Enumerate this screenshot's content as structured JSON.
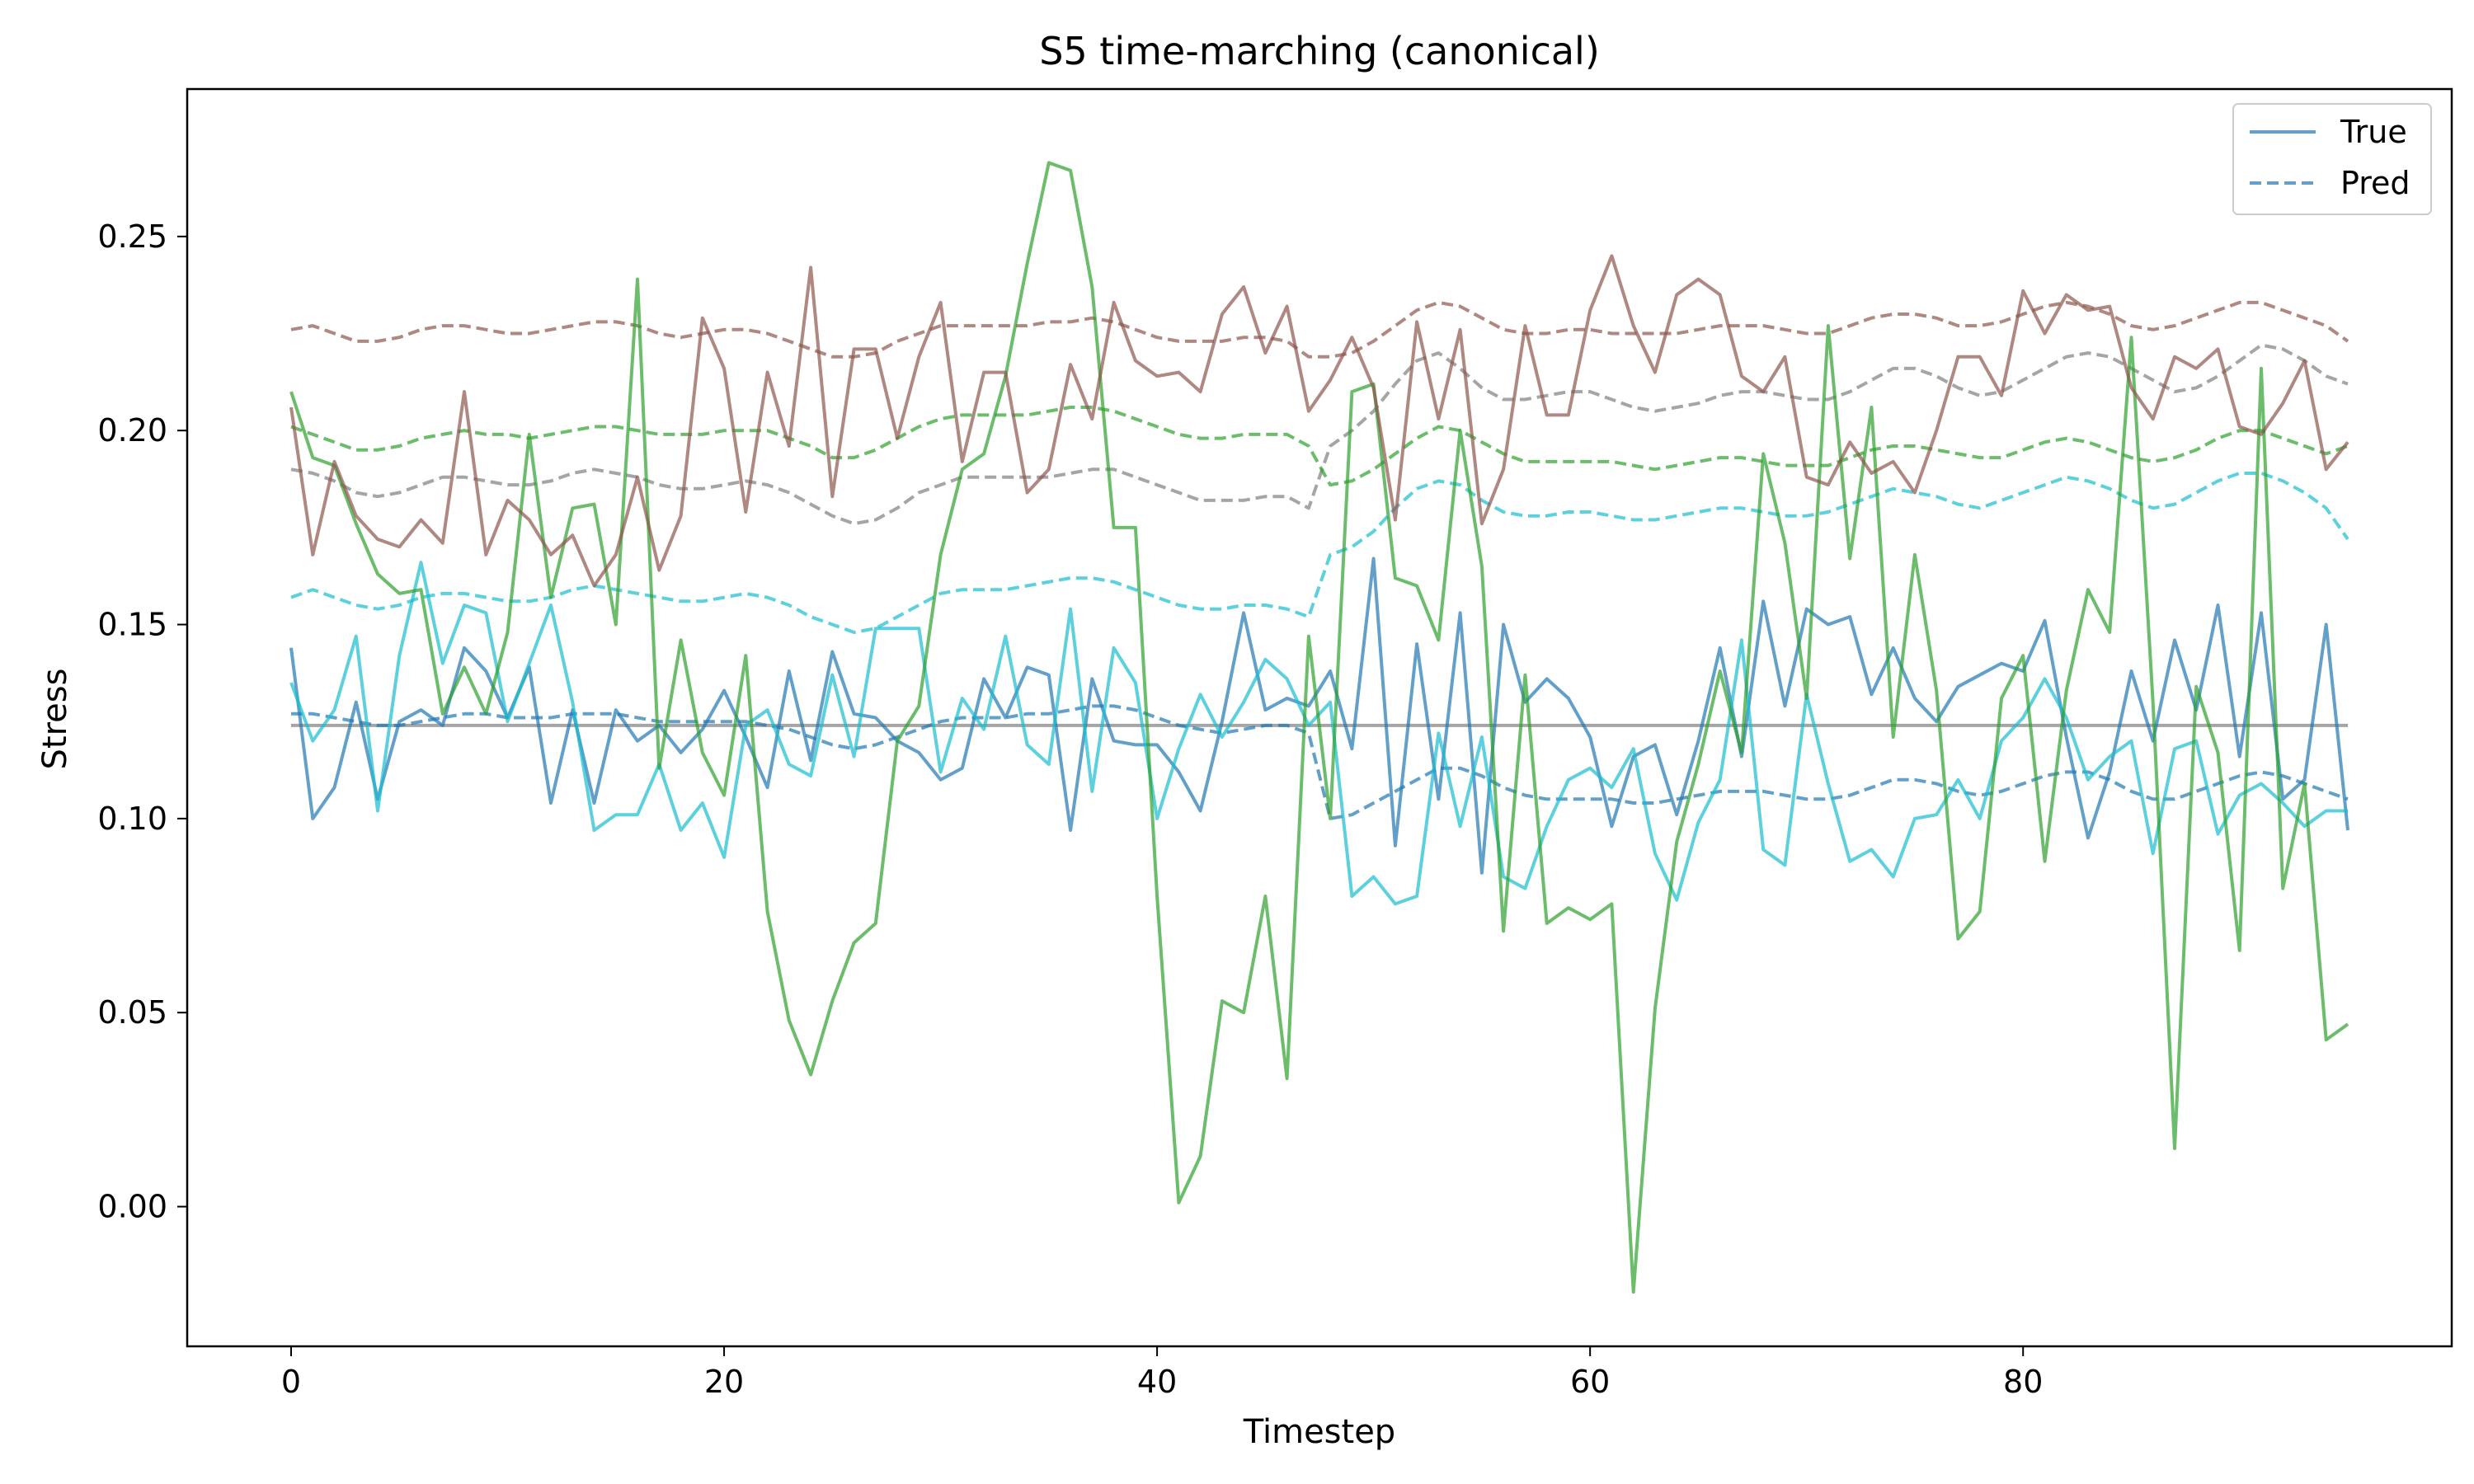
{
  "chart_data": {
    "type": "line",
    "title": "S5 time-marching (canonical)",
    "xlabel": "Timestep",
    "ylabel": "Stress",
    "xlim": [
      -4.8,
      99.8
    ],
    "ylim": [
      -0.036,
      0.288
    ],
    "xticks": [
      0,
      20,
      40,
      60,
      80
    ],
    "yticks": [
      0.0,
      0.05,
      0.1,
      0.15,
      0.2,
      0.25
    ],
    "ytick_labels": [
      "0.00",
      "0.05",
      "0.10",
      "0.15",
      "0.20",
      "0.25"
    ],
    "grid": false,
    "legend": {
      "position": "top-right",
      "entries": [
        {
          "label": "True",
          "style": "solid",
          "color": "#1f77b4"
        },
        {
          "label": "Pred",
          "style": "dashed",
          "color": "#1f77b4"
        }
      ]
    },
    "colors": {
      "blue": "#1f77b4",
      "green": "#2ca02c",
      "brown": "#8c564b",
      "gray": "#7f7f7f",
      "cyan": "#17becf"
    },
    "series": [
      {
        "color": "gray",
        "style": "solid",
        "values": [
          0.124,
          0.124,
          0.124,
          0.124,
          0.124,
          0.124,
          0.124,
          0.124,
          0.124,
          0.124,
          0.124,
          0.124,
          0.124,
          0.124,
          0.124,
          0.124,
          0.124,
          0.124,
          0.124,
          0.124,
          0.124,
          0.124,
          0.124,
          0.124,
          0.124,
          0.124,
          0.124,
          0.124,
          0.124,
          0.124,
          0.124,
          0.124,
          0.124,
          0.124,
          0.124,
          0.124,
          0.124,
          0.124,
          0.124,
          0.124,
          0.124,
          0.124,
          0.124,
          0.124,
          0.124,
          0.124,
          0.124,
          0.124,
          0.124,
          0.124,
          0.124,
          0.124,
          0.124,
          0.124,
          0.124,
          0.124,
          0.124,
          0.124,
          0.124,
          0.124,
          0.124,
          0.124,
          0.124,
          0.124,
          0.124,
          0.124,
          0.124,
          0.124,
          0.124,
          0.124,
          0.124,
          0.124,
          0.124,
          0.124,
          0.124,
          0.124,
          0.124,
          0.124,
          0.124,
          0.124,
          0.124,
          0.124,
          0.124,
          0.124,
          0.124,
          0.124,
          0.124,
          0.124,
          0.124,
          0.124,
          0.124,
          0.124,
          0.124,
          0.124,
          0.124,
          0.124
        ]
      },
      {
        "color": "gray",
        "style": "dashed",
        "values": [
          0.19,
          0.189,
          0.187,
          0.184,
          0.183,
          0.184,
          0.186,
          0.188,
          0.188,
          0.187,
          0.186,
          0.186,
          0.187,
          0.189,
          0.19,
          0.189,
          0.188,
          0.186,
          0.185,
          0.185,
          0.186,
          0.187,
          0.186,
          0.184,
          0.181,
          0.178,
          0.176,
          0.177,
          0.18,
          0.184,
          0.186,
          0.188,
          0.188,
          0.188,
          0.188,
          0.188,
          0.189,
          0.19,
          0.19,
          0.188,
          0.186,
          0.184,
          0.182,
          0.182,
          0.182,
          0.183,
          0.183,
          0.18,
          0.196,
          0.2,
          0.205,
          0.212,
          0.218,
          0.22,
          0.216,
          0.211,
          0.208,
          0.208,
          0.209,
          0.21,
          0.21,
          0.208,
          0.206,
          0.205,
          0.206,
          0.207,
          0.209,
          0.21,
          0.21,
          0.209,
          0.208,
          0.208,
          0.21,
          0.213,
          0.216,
          0.216,
          0.214,
          0.211,
          0.209,
          0.21,
          0.213,
          0.216,
          0.219,
          0.22,
          0.219,
          0.216,
          0.213,
          0.21,
          0.211,
          0.214,
          0.218,
          0.222,
          0.221,
          0.218,
          0.214,
          0.212
        ]
      },
      {
        "color": "blue",
        "style": "dashed",
        "values": [
          0.127,
          0.127,
          0.126,
          0.125,
          0.124,
          0.124,
          0.125,
          0.126,
          0.127,
          0.127,
          0.126,
          0.126,
          0.126,
          0.127,
          0.127,
          0.127,
          0.126,
          0.125,
          0.125,
          0.125,
          0.125,
          0.125,
          0.124,
          0.123,
          0.121,
          0.119,
          0.118,
          0.119,
          0.121,
          0.123,
          0.125,
          0.126,
          0.126,
          0.126,
          0.127,
          0.127,
          0.128,
          0.129,
          0.129,
          0.128,
          0.126,
          0.124,
          0.123,
          0.122,
          0.123,
          0.124,
          0.124,
          0.122,
          0.1,
          0.101,
          0.104,
          0.107,
          0.11,
          0.113,
          0.113,
          0.111,
          0.108,
          0.106,
          0.105,
          0.105,
          0.105,
          0.105,
          0.104,
          0.104,
          0.105,
          0.106,
          0.107,
          0.107,
          0.107,
          0.106,
          0.105,
          0.105,
          0.106,
          0.108,
          0.11,
          0.11,
          0.109,
          0.107,
          0.106,
          0.107,
          0.109,
          0.111,
          0.112,
          0.112,
          0.11,
          0.107,
          0.105,
          0.105,
          0.107,
          0.109,
          0.111,
          0.112,
          0.111,
          0.109,
          0.107,
          0.105
        ]
      },
      {
        "color": "cyan",
        "style": "dashed",
        "values": [
          0.157,
          0.159,
          0.157,
          0.155,
          0.154,
          0.155,
          0.157,
          0.158,
          0.158,
          0.157,
          0.156,
          0.156,
          0.157,
          0.159,
          0.16,
          0.159,
          0.158,
          0.157,
          0.156,
          0.156,
          0.157,
          0.158,
          0.157,
          0.155,
          0.152,
          0.15,
          0.148,
          0.149,
          0.152,
          0.155,
          0.158,
          0.159,
          0.159,
          0.159,
          0.16,
          0.161,
          0.162,
          0.162,
          0.161,
          0.159,
          0.157,
          0.155,
          0.154,
          0.154,
          0.155,
          0.155,
          0.154,
          0.152,
          0.168,
          0.17,
          0.174,
          0.18,
          0.185,
          0.187,
          0.186,
          0.182,
          0.179,
          0.178,
          0.178,
          0.179,
          0.179,
          0.178,
          0.177,
          0.177,
          0.178,
          0.179,
          0.18,
          0.18,
          0.179,
          0.178,
          0.178,
          0.179,
          0.181,
          0.183,
          0.185,
          0.184,
          0.183,
          0.181,
          0.18,
          0.182,
          0.184,
          0.186,
          0.188,
          0.187,
          0.185,
          0.182,
          0.18,
          0.181,
          0.184,
          0.187,
          0.189,
          0.189,
          0.187,
          0.184,
          0.18,
          0.172
        ]
      },
      {
        "color": "green",
        "style": "dashed",
        "values": [
          0.201,
          0.199,
          0.197,
          0.195,
          0.195,
          0.196,
          0.198,
          0.199,
          0.2,
          0.199,
          0.199,
          0.198,
          0.199,
          0.2,
          0.201,
          0.201,
          0.2,
          0.199,
          0.199,
          0.199,
          0.2,
          0.2,
          0.2,
          0.198,
          0.196,
          0.193,
          0.193,
          0.195,
          0.198,
          0.201,
          0.203,
          0.204,
          0.204,
          0.204,
          0.204,
          0.205,
          0.206,
          0.206,
          0.205,
          0.203,
          0.201,
          0.199,
          0.198,
          0.198,
          0.199,
          0.199,
          0.199,
          0.196,
          0.186,
          0.187,
          0.19,
          0.194,
          0.198,
          0.201,
          0.2,
          0.197,
          0.194,
          0.192,
          0.192,
          0.192,
          0.192,
          0.192,
          0.191,
          0.19,
          0.191,
          0.192,
          0.193,
          0.193,
          0.192,
          0.191,
          0.191,
          0.191,
          0.193,
          0.195,
          0.196,
          0.196,
          0.195,
          0.194,
          0.193,
          0.193,
          0.195,
          0.197,
          0.198,
          0.197,
          0.195,
          0.193,
          0.192,
          0.193,
          0.195,
          0.198,
          0.2,
          0.2,
          0.198,
          0.196,
          0.194,
          0.196
        ]
      },
      {
        "color": "brown",
        "style": "dashed",
        "values": [
          0.226,
          0.227,
          0.225,
          0.223,
          0.223,
          0.224,
          0.226,
          0.227,
          0.227,
          0.226,
          0.225,
          0.225,
          0.226,
          0.227,
          0.228,
          0.228,
          0.227,
          0.225,
          0.224,
          0.225,
          0.226,
          0.226,
          0.225,
          0.223,
          0.221,
          0.219,
          0.219,
          0.22,
          0.223,
          0.225,
          0.227,
          0.227,
          0.227,
          0.227,
          0.227,
          0.228,
          0.228,
          0.229,
          0.228,
          0.226,
          0.224,
          0.223,
          0.223,
          0.223,
          0.224,
          0.224,
          0.223,
          0.219,
          0.219,
          0.22,
          0.223,
          0.227,
          0.231,
          0.233,
          0.232,
          0.229,
          0.226,
          0.225,
          0.225,
          0.226,
          0.226,
          0.225,
          0.225,
          0.225,
          0.225,
          0.226,
          0.227,
          0.227,
          0.227,
          0.226,
          0.225,
          0.225,
          0.227,
          0.229,
          0.23,
          0.23,
          0.229,
          0.227,
          0.227,
          0.228,
          0.23,
          0.232,
          0.233,
          0.232,
          0.23,
          0.227,
          0.226,
          0.227,
          0.229,
          0.231,
          0.233,
          0.233,
          0.231,
          0.229,
          0.227,
          0.223
        ]
      },
      {
        "color": "blue",
        "style": "solid",
        "values": [
          0.144,
          0.1,
          0.108,
          0.13,
          0.105,
          0.125,
          0.128,
          0.124,
          0.144,
          0.138,
          0.126,
          0.139,
          0.104,
          0.128,
          0.104,
          0.128,
          0.12,
          0.124,
          0.117,
          0.123,
          0.133,
          0.121,
          0.108,
          0.138,
          0.115,
          0.143,
          0.127,
          0.126,
          0.12,
          0.117,
          0.11,
          0.113,
          0.136,
          0.126,
          0.139,
          0.137,
          0.097,
          0.136,
          0.12,
          0.119,
          0.119,
          0.112,
          0.102,
          0.125,
          0.153,
          0.128,
          0.131,
          0.129,
          0.138,
          0.118,
          0.167,
          0.093,
          0.145,
          0.105,
          0.153,
          0.086,
          0.15,
          0.13,
          0.136,
          0.131,
          0.121,
          0.098,
          0.116,
          0.119,
          0.101,
          0.12,
          0.144,
          0.116,
          0.156,
          0.129,
          0.154,
          0.15,
          0.152,
          0.132,
          0.144,
          0.131,
          0.125,
          0.134,
          0.137,
          0.14,
          0.138,
          0.151,
          0.121,
          0.095,
          0.112,
          0.138,
          0.12,
          0.146,
          0.128,
          0.155,
          0.116,
          0.153,
          0.105,
          0.11,
          0.15,
          0.097
        ]
      },
      {
        "color": "cyan",
        "style": "solid",
        "values": [
          0.135,
          0.12,
          0.128,
          0.147,
          0.102,
          0.142,
          0.166,
          0.14,
          0.155,
          0.153,
          0.125,
          0.14,
          0.155,
          0.13,
          0.097,
          0.101,
          0.101,
          0.114,
          0.097,
          0.104,
          0.09,
          0.124,
          0.128,
          0.114,
          0.111,
          0.137,
          0.116,
          0.149,
          0.149,
          0.149,
          0.112,
          0.131,
          0.123,
          0.147,
          0.119,
          0.114,
          0.154,
          0.107,
          0.144,
          0.135,
          0.1,
          0.118,
          0.132,
          0.121,
          0.13,
          0.141,
          0.136,
          0.124,
          0.13,
          0.08,
          0.085,
          0.078,
          0.08,
          0.122,
          0.098,
          0.121,
          0.085,
          0.082,
          0.098,
          0.11,
          0.113,
          0.108,
          0.118,
          0.091,
          0.079,
          0.099,
          0.11,
          0.146,
          0.092,
          0.088,
          0.132,
          0.109,
          0.089,
          0.092,
          0.085,
          0.1,
          0.101,
          0.11,
          0.1,
          0.12,
          0.126,
          0.136,
          0.126,
          0.11,
          0.116,
          0.12,
          0.091,
          0.118,
          0.12,
          0.096,
          0.106,
          0.109,
          0.104,
          0.098,
          0.102,
          0.102
        ]
      },
      {
        "color": "green",
        "style": "solid",
        "values": [
          0.21,
          0.193,
          0.191,
          0.176,
          0.163,
          0.158,
          0.159,
          0.127,
          0.139,
          0.127,
          0.148,
          0.199,
          0.157,
          0.18,
          0.181,
          0.15,
          0.239,
          0.113,
          0.146,
          0.117,
          0.106,
          0.142,
          0.076,
          0.048,
          0.034,
          0.053,
          0.068,
          0.073,
          0.12,
          0.129,
          0.168,
          0.19,
          0.194,
          0.214,
          0.243,
          0.269,
          0.267,
          0.237,
          0.175,
          0.175,
          0.08,
          0.001,
          0.013,
          0.053,
          0.05,
          0.08,
          0.033,
          0.147,
          0.1,
          0.21,
          0.212,
          0.162,
          0.16,
          0.146,
          0.2,
          0.165,
          0.071,
          0.137,
          0.073,
          0.077,
          0.074,
          0.078,
          -0.022,
          0.051,
          0.094,
          0.114,
          0.138,
          0.117,
          0.194,
          0.171,
          0.131,
          0.227,
          0.167,
          0.206,
          0.121,
          0.168,
          0.133,
          0.069,
          0.076,
          0.131,
          0.142,
          0.089,
          0.133,
          0.159,
          0.148,
          0.224,
          0.13,
          0.015,
          0.134,
          0.117,
          0.066,
          0.216,
          0.082,
          0.109,
          0.043,
          0.047
        ]
      },
      {
        "color": "brown",
        "style": "solid",
        "values": [
          0.206,
          0.168,
          0.192,
          0.178,
          0.172,
          0.17,
          0.177,
          0.171,
          0.21,
          0.168,
          0.182,
          0.177,
          0.168,
          0.173,
          0.16,
          0.168,
          0.188,
          0.164,
          0.178,
          0.229,
          0.216,
          0.179,
          0.215,
          0.196,
          0.242,
          0.183,
          0.221,
          0.221,
          0.198,
          0.219,
          0.233,
          0.192,
          0.215,
          0.215,
          0.184,
          0.19,
          0.217,
          0.203,
          0.233,
          0.218,
          0.214,
          0.215,
          0.21,
          0.23,
          0.237,
          0.22,
          0.232,
          0.205,
          0.213,
          0.224,
          0.211,
          0.177,
          0.228,
          0.203,
          0.226,
          0.176,
          0.19,
          0.227,
          0.204,
          0.204,
          0.231,
          0.245,
          0.227,
          0.215,
          0.235,
          0.239,
          0.235,
          0.214,
          0.21,
          0.219,
          0.188,
          0.186,
          0.197,
          0.189,
          0.192,
          0.184,
          0.2,
          0.219,
          0.219,
          0.209,
          0.236,
          0.225,
          0.235,
          0.231,
          0.232,
          0.211,
          0.203,
          0.219,
          0.216,
          0.221,
          0.201,
          0.199,
          0.207,
          0.218,
          0.19,
          0.197
        ]
      }
    ]
  }
}
